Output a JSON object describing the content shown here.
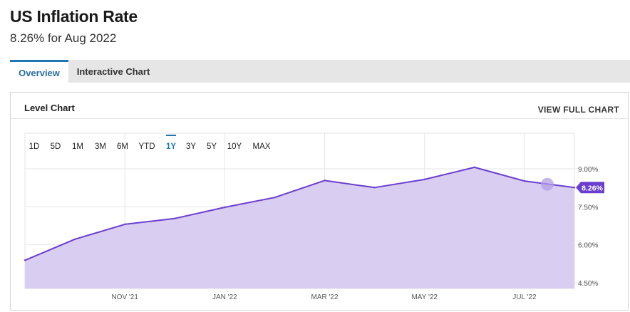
{
  "header": {
    "title": "US Inflation Rate",
    "subtitle": "8.26% for Aug 2022"
  },
  "tabs": [
    {
      "label": "Overview",
      "active": true
    },
    {
      "label": "Interactive Chart",
      "active": false
    }
  ],
  "panel": {
    "title": "Level Chart",
    "view_full_label": "VIEW FULL CHART"
  },
  "range_buttons": [
    {
      "label": "1D",
      "active": false
    },
    {
      "label": "5D",
      "active": false
    },
    {
      "label": "1M",
      "active": false
    },
    {
      "label": "3M",
      "active": false
    },
    {
      "label": "6M",
      "active": false
    },
    {
      "label": "YTD",
      "active": false
    },
    {
      "label": "1Y",
      "active": true
    },
    {
      "label": "3Y",
      "active": false
    },
    {
      "label": "5Y",
      "active": false
    },
    {
      "label": "10Y",
      "active": false
    },
    {
      "label": "MAX",
      "active": false
    }
  ],
  "colors": {
    "line": "#6a3fcf",
    "fill": "#d9cdf2",
    "accent": "#1f77b4",
    "badge": "#6a3fcf"
  },
  "chart_data": {
    "type": "area",
    "title": "",
    "xlabel": "",
    "ylabel": "",
    "x": [
      "Sep 2021",
      "Oct 2021",
      "Nov 2021",
      "Dec 2021",
      "Jan 2022",
      "Feb 2022",
      "Mar 2022",
      "Apr 2022",
      "May 2022",
      "Jun 2022",
      "Jul 2022",
      "Aug 2022"
    ],
    "series": [
      {
        "values": [
          5.39,
          6.22,
          6.81,
          7.04,
          7.48,
          7.87,
          8.54,
          8.26,
          8.58,
          9.06,
          8.52,
          8.26
        ]
      }
    ],
    "x_tick_labels": [
      {
        "label": "NOV '21",
        "at": "Nov 2021"
      },
      {
        "label": "JAN '22",
        "at": "Jan 2022"
      },
      {
        "label": "MAR '22",
        "at": "Mar 2022"
      },
      {
        "label": "MAY '22",
        "at": "May 2022"
      },
      {
        "label": "JUL '22",
        "at": "Jul 2022"
      }
    ],
    "y_ticks": [
      {
        "value": 4.5,
        "label": "4.50%"
      },
      {
        "value": 6.0,
        "label": "6.00%"
      },
      {
        "value": 7.5,
        "label": "7.50%"
      },
      {
        "value": 9.0,
        "label": "9.00%"
      }
    ],
    "ylim": [
      4.5,
      9.0
    ],
    "y_axis_side": "right",
    "last_value_label": "8.26%",
    "highlight_point": "Jul 2022",
    "grid": true
  }
}
